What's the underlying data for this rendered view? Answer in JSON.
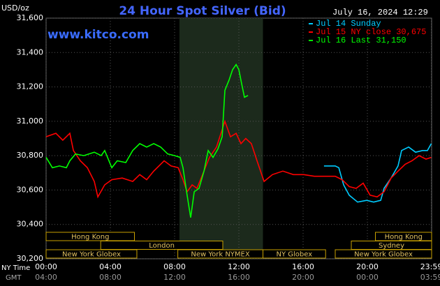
{
  "chart_data": {
    "type": "line",
    "title": "24 Hour Spot Silver (Bid)",
    "timestamp": "July 16, 2024 12:29",
    "watermark": "www.kitco.com",
    "y_label": "USD/oz",
    "x_label": "NY Time",
    "x2_label": "GMT",
    "xlim": [
      0,
      24
    ],
    "ylim": [
      30200,
      31600
    ],
    "xticks": [
      {
        "value": 0,
        "label": "00:00"
      },
      {
        "value": 4,
        "label": "04:00"
      },
      {
        "value": 8,
        "label": "08:00"
      },
      {
        "value": 12,
        "label": "12:00"
      },
      {
        "value": 16,
        "label": "16:00"
      },
      {
        "value": 20,
        "label": "20:00"
      },
      {
        "value": 23.98,
        "label": "23:59"
      }
    ],
    "x2ticks": [
      "04:00",
      "08:00",
      "12:00",
      "16:00",
      "20:00",
      "00:00",
      "03:59"
    ],
    "yticks": [
      {
        "value": 30200,
        "label": "30,200"
      },
      {
        "value": 30400,
        "label": "30,400"
      },
      {
        "value": 30600,
        "label": "30,600"
      },
      {
        "value": 30800,
        "label": "30,800"
      },
      {
        "value": 31000,
        "label": "31,000"
      },
      {
        "value": 31200,
        "label": "31,200"
      },
      {
        "value": 31400,
        "label": "31,400"
      },
      {
        "value": 31600,
        "label": "31,600"
      }
    ],
    "grid": true,
    "highlight": [
      8.3,
      13.5
    ],
    "series": [
      {
        "name": "Jul 14 Sunday",
        "color": "#00ccff",
        "x": [
          17.3,
          18.0,
          18.22,
          18.52,
          18.87,
          19.39,
          19.96,
          20.39,
          20.83,
          21.04,
          21.48,
          21.91,
          22.13,
          22.57,
          23.0,
          23.43,
          23.74,
          23.98
        ],
        "values": [
          30740,
          30740,
          30730,
          30630,
          30570,
          30530,
          30540,
          30530,
          30540,
          30610,
          30670,
          30740,
          30830,
          30850,
          30820,
          30830,
          30830,
          30870
        ]
      },
      {
        "name": "Jul 15 NY close 30,675",
        "color": "#ff0000",
        "x": [
          0,
          0.61,
          1.04,
          1.48,
          1.7,
          2.13,
          2.57,
          3.0,
          3.22,
          3.65,
          4.09,
          4.74,
          5.39,
          5.83,
          6.26,
          6.7,
          7.35,
          7.78,
          8.22,
          8.52,
          8.78,
          9.09,
          9.39,
          9.74,
          10.17,
          10.61,
          11.13,
          11.48,
          11.83,
          12.13,
          12.43,
          12.78,
          13.13,
          13.57,
          14.09,
          14.74,
          15.39,
          16.04,
          16.7,
          18.0,
          18.43,
          18.87,
          19.3,
          19.74,
          20.17,
          20.61,
          21.04,
          21.48,
          21.91,
          22.35,
          22.78,
          23.22,
          23.65,
          23.98
        ],
        "values": [
          30910,
          30930,
          30890,
          30930,
          30830,
          30770,
          30730,
          30650,
          30560,
          30630,
          30660,
          30670,
          30650,
          30690,
          30660,
          30710,
          30770,
          30740,
          30730,
          30660,
          30590,
          30630,
          30610,
          30690,
          30790,
          30850,
          31000,
          30910,
          30930,
          30870,
          30900,
          30870,
          30770,
          30650,
          30690,
          30710,
          30690,
          30690,
          30680,
          30680,
          30660,
          30620,
          30610,
          30640,
          30570,
          30560,
          30590,
          30670,
          30710,
          30750,
          30770,
          30800,
          30780,
          30790
        ]
      },
      {
        "name": "Jul 16 Last 31,150",
        "color": "#00ff00",
        "x": [
          0,
          0.39,
          0.83,
          1.26,
          1.48,
          1.83,
          2.35,
          3.0,
          3.43,
          3.65,
          4.09,
          4.43,
          4.96,
          5.39,
          5.83,
          6.26,
          6.7,
          7.13,
          7.57,
          8.0,
          8.35,
          8.52,
          8.78,
          9.0,
          9.22,
          9.52,
          9.83,
          10.09,
          10.39,
          10.7,
          10.96,
          11.13,
          11.39,
          11.61,
          11.83,
          12.0,
          12.17,
          12.35,
          12.57
        ],
        "values": [
          30790,
          30730,
          30740,
          30730,
          30770,
          30810,
          30800,
          30820,
          30800,
          30830,
          30730,
          30770,
          30760,
          30830,
          30870,
          30850,
          30870,
          30850,
          30810,
          30800,
          30790,
          30730,
          30570,
          30440,
          30590,
          30610,
          30710,
          30830,
          30790,
          30840,
          30910,
          31180,
          31240,
          31300,
          31330,
          31300,
          31220,
          31140,
          31150
        ]
      }
    ],
    "sessions": [
      [
        {
          "label": "New York Globex",
          "start": 0,
          "end": 5.65
        },
        {
          "label": "New York NYMEX",
          "start": 8.2,
          "end": 13.5
        },
        {
          "label": "NY Globex",
          "start": 13.5,
          "end": 17.4
        },
        {
          "label": "New York Globex",
          "start": 18.0,
          "end": 24
        }
      ],
      [
        {
          "label": "London",
          "start": 3.4,
          "end": 11.0
        },
        {
          "label": "Sydney",
          "start": 19.0,
          "end": 24
        }
      ],
      [
        {
          "label": "Hong Kong",
          "start": 0,
          "end": 5.5
        },
        {
          "label": "Hong Kong",
          "start": 20.5,
          "end": 24
        }
      ]
    ]
  }
}
